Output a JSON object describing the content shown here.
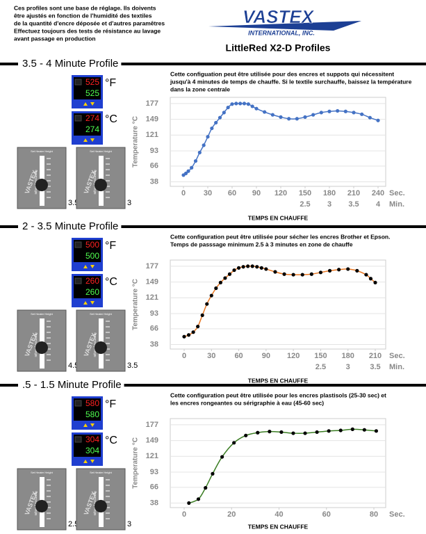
{
  "header": {
    "note": [
      "Ces profiles sont une base de réglage. Ils doivents",
      "être ajustés en fonction de l'humidité des textiles",
      "de la quantité d'encre déposée et d'autres paramêtres",
      "Effectuez toujours des tests de résistance au lavage",
      "avant passage en production"
    ],
    "logo": "VASTEX",
    "logo_sub": "INTERNATIONAL, INC.",
    "title": "LittleRed X2-D Profiles"
  },
  "units": {
    "f": "°F",
    "c": "°C"
  },
  "heater_panel": {
    "label": "Set Heater Height",
    "focus": "Infrared Focusing",
    "brand": "VASTEX"
  },
  "sections": [
    {
      "heading": "3.5 - 4 Minute Profile",
      "f_set": "525",
      "f_act": "525",
      "c_set": "274",
      "c_act": "274",
      "knob_left": "3.5",
      "knob_right": "3"
    },
    {
      "heading": "2 - 3.5 Minute Profile",
      "f_set": "500",
      "f_act": "500",
      "c_set": "260",
      "c_act": "260",
      "knob_left": "4.5",
      "knob_right": "3.5"
    },
    {
      "heading": ".5 - 1.5 Minute Profile",
      "f_set": "580",
      "f_act": "580",
      "c_set": "304",
      "c_act": "304",
      "knob_left": "2.5",
      "knob_right": "3"
    }
  ],
  "chart_data": [
    {
      "type": "line",
      "description": [
        "Cette configuation peut être utilisée pour des encres et suppots qui nécessitent",
        "jusqu'à 4 minutes de temps de chauffe. Si le textile surchauffe, baissez la température",
        "dans la zone centrale"
      ],
      "y_label": "Temperature °C",
      "x_label": "TEMPS EN CHAUFFE",
      "x_unit": "Sec.",
      "x2_unit": "Min.",
      "x": [
        0,
        3,
        6,
        10,
        15,
        20,
        25,
        30,
        35,
        40,
        45,
        50,
        55,
        60,
        65,
        70,
        75,
        80,
        85,
        90,
        100,
        110,
        120,
        130,
        140,
        150,
        160,
        170,
        180,
        190,
        200,
        210,
        220,
        230,
        240
      ],
      "values": [
        50,
        53,
        57,
        63,
        75,
        90,
        103,
        118,
        133,
        143,
        152,
        161,
        170,
        176,
        177,
        177,
        177,
        176,
        172,
        168,
        162,
        157,
        153,
        150,
        150,
        153,
        157,
        161,
        163,
        164,
        163,
        161,
        158,
        152,
        147
      ],
      "color": "#4472c4",
      "marker_color": "#4472c4",
      "xlim": [
        0,
        240
      ],
      "xticks": [
        0,
        30,
        60,
        90,
        120,
        150,
        180,
        210,
        240
      ],
      "x2ticks": [
        {
          "value": 150,
          "label": "2.5"
        },
        {
          "value": 180,
          "label": "3"
        },
        {
          "value": 210,
          "label": "3.5"
        },
        {
          "value": 240,
          "label": "4"
        }
      ],
      "ylim": [
        30,
        188
      ],
      "yticks": [
        38,
        66,
        93,
        121,
        149,
        177
      ],
      "grid": true
    },
    {
      "type": "line",
      "description": [
        "Cette configuration peut être utilisée pour sécher les encres Brother et Epson.",
        "Temps de passsage minimum 2.5 à 3 minutes en zone de chauffe"
      ],
      "y_label": "Temperature °C",
      "x_label": "TEMPS EN CHAUFFE",
      "x_unit": "Sec.",
      "x2_unit": "Min.",
      "x": [
        0,
        5,
        10,
        15,
        20,
        25,
        30,
        35,
        40,
        45,
        50,
        55,
        60,
        65,
        70,
        75,
        80,
        85,
        90,
        100,
        110,
        120,
        130,
        140,
        150,
        160,
        170,
        180,
        190,
        200,
        205,
        210
      ],
      "values": [
        52,
        55,
        60,
        70,
        90,
        110,
        125,
        138,
        148,
        156,
        163,
        170,
        174,
        176,
        177,
        177,
        176,
        174,
        172,
        167,
        163,
        162,
        162,
        163,
        166,
        169,
        171,
        172,
        169,
        162,
        155,
        148
      ],
      "color": "#e87722",
      "marker_color": "#000000",
      "xlim": [
        0,
        210
      ],
      "xticks": [
        0,
        30,
        60,
        90,
        120,
        150,
        180,
        210
      ],
      "x2ticks": [
        {
          "value": 150,
          "label": "2.5"
        },
        {
          "value": 180,
          "label": "3"
        },
        {
          "value": 210,
          "label": "3.5"
        }
      ],
      "ylim": [
        30,
        188
      ],
      "yticks": [
        38,
        66,
        93,
        121,
        149,
        177
      ],
      "grid": true
    },
    {
      "type": "line",
      "description": [
        "Cette configuration peut être utilisée pour les encres plastisols (25-30 sec) et",
        "les encres rongeantes ou sérigraphie à eau (45-60 sec)"
      ],
      "y_label": "Temperature °C",
      "x_label": "TEMPS EN CHAUFFE",
      "x_unit": "Sec.",
      "x": [
        2,
        6,
        9,
        12,
        16,
        21,
        26,
        31,
        36,
        41,
        46,
        51,
        56,
        61,
        66,
        71,
        76,
        81
      ],
      "values": [
        38,
        45,
        65,
        90,
        120,
        145,
        158,
        163,
        165,
        164,
        162,
        162,
        164,
        166,
        167,
        169,
        168,
        166
      ],
      "color": "#3a7d22",
      "marker_color": "#000000",
      "xlim": [
        0,
        80
      ],
      "xticks": [
        0,
        20,
        40,
        60,
        80
      ],
      "ylim": [
        30,
        188
      ],
      "yticks": [
        38,
        66,
        93,
        121,
        149,
        177
      ],
      "grid": true
    }
  ]
}
